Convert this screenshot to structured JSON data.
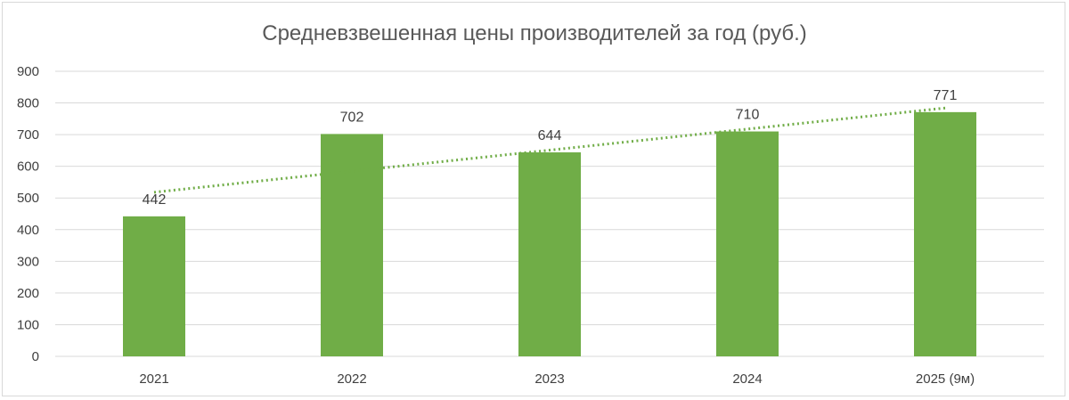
{
  "chart_data": {
    "type": "bar",
    "title": "Средневзвешенная цены производителей за год (руб.)",
    "categories": [
      "2021",
      "2022",
      "2023",
      "2024",
      "2025 (9м)"
    ],
    "series": [
      {
        "values": [
          442,
          702,
          644,
          710,
          771
        ]
      }
    ],
    "data_labels": [
      "442",
      "702",
      "644",
      "710",
      "771"
    ],
    "ylim": [
      0,
      900
    ],
    "yticks": [
      0,
      100,
      200,
      300,
      400,
      500,
      600,
      700,
      800,
      900
    ],
    "grid": true,
    "legend": "none",
    "trendline": {
      "type": "linear",
      "style": "dotted",
      "start": 518,
      "end": 784
    },
    "colors": {
      "bar": "#70ad47",
      "trend": "#70ad47",
      "grid": "#d9d9d9"
    }
  }
}
